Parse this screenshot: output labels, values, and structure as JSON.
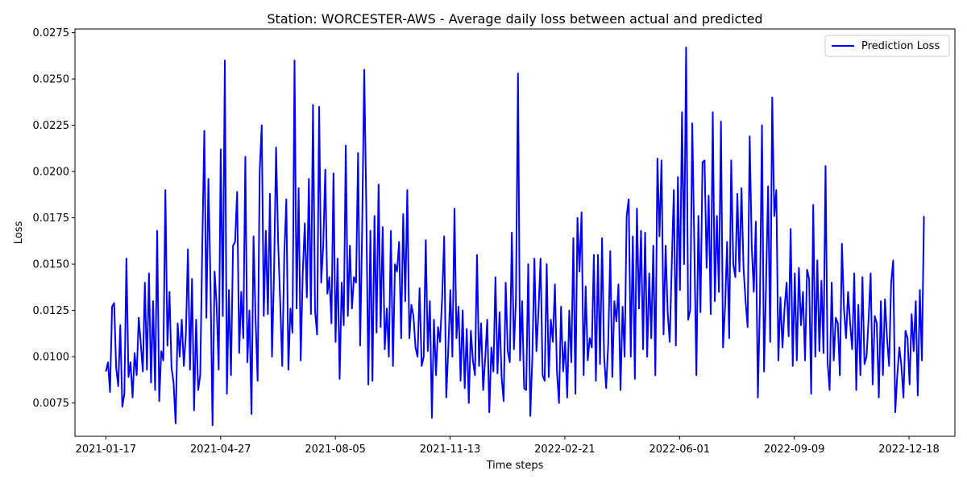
{
  "chart_data": {
    "type": "line",
    "title": "Station: WORCESTER-AWS - Average daily loss between actual and predicted",
    "xlabel": "Time steps",
    "ylabel": "Loss",
    "x_start": "2021-01-17",
    "x_end": "2022-12-31",
    "xlim": [
      "2020-12-21",
      "2023-01-27"
    ],
    "ylim": [
      0.0057,
      0.0277
    ],
    "x_ticks": [
      "2021-01-17",
      "2021-04-27",
      "2021-08-05",
      "2021-11-13",
      "2022-02-21",
      "2022-06-01",
      "2022-09-09",
      "2022-12-18"
    ],
    "y_ticks": [
      "0.0075",
      "0.0100",
      "0.0125",
      "0.0150",
      "0.0175",
      "0.0200",
      "0.0225",
      "0.0250",
      "0.0275"
    ],
    "grid": false,
    "legend_position": "top-right",
    "series": [
      {
        "name": "Prediction Loss",
        "color": "#0000ff",
        "values": [
          0.0092,
          0.0097,
          0.0081,
          0.0127,
          0.0129,
          0.0094,
          0.0084,
          0.0117,
          0.0073,
          0.008,
          0.0153,
          0.0089,
          0.0097,
          0.0078,
          0.0102,
          0.009,
          0.0121,
          0.0107,
          0.0092,
          0.014,
          0.0093,
          0.0145,
          0.0086,
          0.013,
          0.0082,
          0.0168,
          0.0076,
          0.0103,
          0.0098,
          0.019,
          0.0106,
          0.0135,
          0.0094,
          0.0086,
          0.0064,
          0.0118,
          0.01,
          0.012,
          0.0095,
          0.0112,
          0.0158,
          0.0093,
          0.0142,
          0.0071,
          0.012,
          0.0082,
          0.009,
          0.016,
          0.0222,
          0.0121,
          0.0196,
          0.014,
          0.0063,
          0.0146,
          0.0128,
          0.0093,
          0.0212,
          0.0122,
          0.026,
          0.008,
          0.0136,
          0.009,
          0.016,
          0.0162,
          0.0189,
          0.0102,
          0.0135,
          0.011,
          0.0208,
          0.0097,
          0.0125,
          0.0069,
          0.0165,
          0.012,
          0.0087,
          0.02,
          0.0225,
          0.0122,
          0.0168,
          0.0123,
          0.0188,
          0.01,
          0.0145,
          0.0213,
          0.0162,
          0.013,
          0.0095,
          0.0155,
          0.0185,
          0.0093,
          0.0126,
          0.0113,
          0.026,
          0.0126,
          0.0191,
          0.0098,
          0.0145,
          0.0172,
          0.0132,
          0.0196,
          0.0123,
          0.0236,
          0.0125,
          0.0112,
          0.0235,
          0.014,
          0.016,
          0.0201,
          0.0134,
          0.0143,
          0.0118,
          0.0199,
          0.0108,
          0.0153,
          0.0088,
          0.014,
          0.0117,
          0.0214,
          0.0122,
          0.016,
          0.0126,
          0.0143,
          0.014,
          0.021,
          0.0106,
          0.017,
          0.0255,
          0.0181,
          0.0085,
          0.0168,
          0.0087,
          0.0176,
          0.0113,
          0.0193,
          0.0116,
          0.017,
          0.0104,
          0.0126,
          0.01,
          0.0168,
          0.0095,
          0.015,
          0.0146,
          0.0162,
          0.011,
          0.0177,
          0.013,
          0.019,
          0.011,
          0.0128,
          0.0122,
          0.0105,
          0.01,
          0.0137,
          0.0095,
          0.01,
          0.0163,
          0.0103,
          0.013,
          0.0067,
          0.012,
          0.009,
          0.0116,
          0.0108,
          0.0132,
          0.0165,
          0.0078,
          0.0104,
          0.0136,
          0.01,
          0.018,
          0.011,
          0.0127,
          0.0087,
          0.0125,
          0.0083,
          0.0115,
          0.0075,
          0.0114,
          0.0098,
          0.009,
          0.0155,
          0.0095,
          0.0118,
          0.0082,
          0.0099,
          0.012,
          0.007,
          0.0105,
          0.0092,
          0.0143,
          0.0091,
          0.0124,
          0.0089,
          0.0076,
          0.014,
          0.0103,
          0.0097,
          0.0167,
          0.0104,
          0.0131,
          0.0253,
          0.0098,
          0.013,
          0.0083,
          0.0082,
          0.015,
          0.0068,
          0.01,
          0.0153,
          0.0103,
          0.0125,
          0.0153,
          0.009,
          0.0087,
          0.015,
          0.0089,
          0.012,
          0.0108,
          0.0139,
          0.0092,
          0.0075,
          0.0127,
          0.0092,
          0.0108,
          0.0078,
          0.0125,
          0.0097,
          0.0164,
          0.008,
          0.0175,
          0.0146,
          0.0178,
          0.009,
          0.0138,
          0.0098,
          0.011,
          0.0105,
          0.0155,
          0.0087,
          0.0155,
          0.0096,
          0.0164,
          0.01,
          0.0083,
          0.0107,
          0.0157,
          0.0089,
          0.013,
          0.0119,
          0.0139,
          0.0082,
          0.0127,
          0.01,
          0.0176,
          0.0185,
          0.01,
          0.0165,
          0.0088,
          0.018,
          0.0126,
          0.0168,
          0.0104,
          0.0167,
          0.01,
          0.0145,
          0.011,
          0.016,
          0.009,
          0.0207,
          0.0165,
          0.0206,
          0.0112,
          0.016,
          0.0124,
          0.0108,
          0.015,
          0.019,
          0.0106,
          0.0197,
          0.0136,
          0.0232,
          0.015,
          0.0267,
          0.012,
          0.0125,
          0.0226,
          0.016,
          0.009,
          0.0176,
          0.0124,
          0.0205,
          0.0206,
          0.0148,
          0.0187,
          0.0123,
          0.0232,
          0.013,
          0.0176,
          0.0135,
          0.0227,
          0.0105,
          0.0127,
          0.0162,
          0.011,
          0.0206,
          0.015,
          0.0143,
          0.0188,
          0.0146,
          0.0191,
          0.0148,
          0.013,
          0.0116,
          0.0219,
          0.016,
          0.0135,
          0.0173,
          0.0078,
          0.013,
          0.0225,
          0.0092,
          0.014,
          0.0192,
          0.0108,
          0.024,
          0.0176,
          0.019,
          0.0098,
          0.0132,
          0.0105,
          0.0126,
          0.014,
          0.0111,
          0.0169,
          0.0095,
          0.0145,
          0.0098,
          0.0148,
          0.0117,
          0.0135,
          0.0098,
          0.0147,
          0.0142,
          0.008,
          0.0182,
          0.01,
          0.0152,
          0.0103,
          0.0141,
          0.0102,
          0.0203,
          0.0097,
          0.0082,
          0.014,
          0.0098,
          0.0121,
          0.0118,
          0.009,
          0.0161,
          0.0126,
          0.011,
          0.0135,
          0.0118,
          0.0104,
          0.0145,
          0.0082,
          0.0128,
          0.009,
          0.0143,
          0.0096,
          0.01,
          0.012,
          0.0145,
          0.0085,
          0.0122,
          0.0118,
          0.0078,
          0.013,
          0.009,
          0.0131,
          0.011,
          0.0095,
          0.014,
          0.0152,
          0.007,
          0.009,
          0.0105,
          0.0095,
          0.0078,
          0.0114,
          0.011,
          0.0085,
          0.0123,
          0.0103,
          0.013,
          0.0079,
          0.0136,
          0.0098,
          0.0176
        ]
      }
    ]
  }
}
